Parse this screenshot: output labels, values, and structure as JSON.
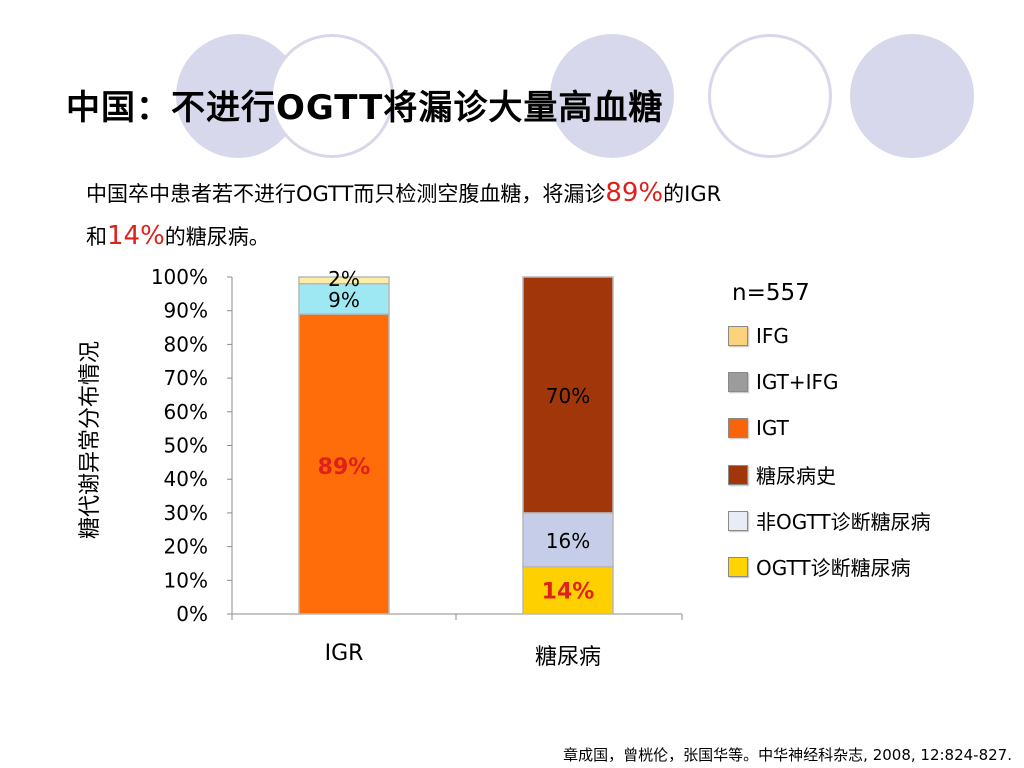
{
  "slide": {
    "title": "中国：不进行OGTT将漏诊大量高血糖",
    "subtitle": {
      "part1": "中国卒中患者若不进行OGTT而只检测空腹血糖，将漏诊",
      "highlight1": "89%",
      "part2": "的IGR",
      "part3": "和",
      "highlight2": "14%",
      "part4": "的糖尿病。"
    },
    "citation": "章成国，曾桄伦，张国华等。中华神经科杂志, 2008, 12:824-827.",
    "highlight_color": "#e0201b"
  },
  "chart_data": {
    "type": "bar",
    "stacked": true,
    "ylabel": "糖代谢异常分布情况",
    "ylim": [
      0,
      100
    ],
    "y_ticks": [
      "0%",
      "10%",
      "20%",
      "30%",
      "40%",
      "50%",
      "60%",
      "70%",
      "80%",
      "90%",
      "100%"
    ],
    "categories": [
      "IGR",
      "糖尿病"
    ],
    "n_label": "n=557",
    "series": [
      {
        "name": "OGTT诊断糖尿病",
        "values": [
          0,
          14
        ],
        "color": "#ffd000",
        "labels": [
          "",
          "14%"
        ],
        "label_color": "#e0201b",
        "label_bold": true
      },
      {
        "name": "非OGTT诊断糖尿病",
        "values": [
          0,
          16
        ],
        "color": "#c6cde8",
        "labels": [
          "",
          "16%"
        ],
        "label_color": "#000000",
        "label_bold": false
      },
      {
        "name": "糖尿病史",
        "values": [
          0,
          70
        ],
        "color": "#a0360a",
        "labels": [
          "",
          "70%"
        ],
        "label_color": "#000000",
        "label_bold": false
      },
      {
        "name": "IGT",
        "values": [
          89,
          0
        ],
        "color": "#ff6d0a",
        "labels": [
          "89%",
          ""
        ],
        "label_color": "#e0201b",
        "label_bold": true
      },
      {
        "name": "IGT+IFG",
        "values": [
          9,
          0
        ],
        "color": "#9ee8f4",
        "labels": [
          "9%",
          ""
        ],
        "label_color": "#000000",
        "label_bold": false
      },
      {
        "name": "IFG",
        "values": [
          2,
          0
        ],
        "color": "#fdeea6",
        "labels": [
          "2%",
          ""
        ],
        "label_color": "#000000",
        "label_bold": false
      }
    ],
    "legend": [
      {
        "name": "IFG",
        "color": "#fcd27a"
      },
      {
        "name": "IGT+IFG",
        "color": "#9c9c9c"
      },
      {
        "name": "IGT",
        "color": "#f8640c"
      },
      {
        "name": "糖尿病史",
        "color": "#a0360a"
      },
      {
        "name": "非OGTT诊断糖尿病",
        "color": "#e9ebf5"
      },
      {
        "name": "OGTT诊断糖尿病",
        "color": "#ffd400"
      }
    ],
    "legend_position": "right",
    "grid": false
  }
}
